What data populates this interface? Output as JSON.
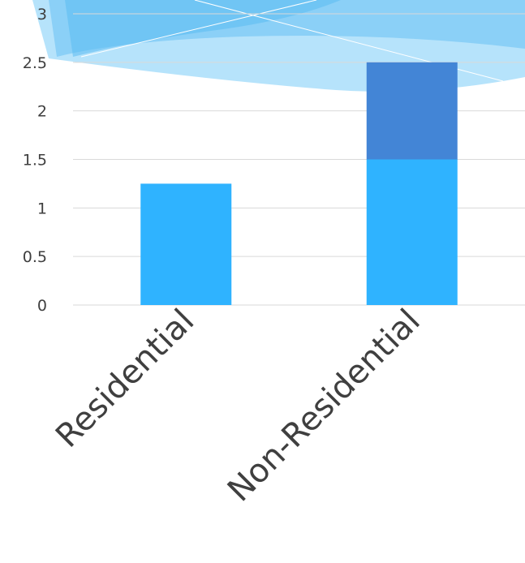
{
  "chart_data": {
    "type": "bar",
    "stacked": true,
    "categories": [
      "Residential",
      "Non-Residential"
    ],
    "series": [
      {
        "values": [
          1.25,
          1.5
        ],
        "color": "#2fb3ff"
      },
      {
        "values": [
          0,
          1.0
        ],
        "color": "#4385d6"
      }
    ],
    "yticks": [
      "0",
      "0.5",
      "1",
      "1.5",
      "2",
      "2.5",
      "3"
    ],
    "ylim": [
      0,
      3
    ],
    "grid": true,
    "legend": "none"
  },
  "colors": {
    "gridline": "#d9d9d9",
    "header_light": "#aee0fb",
    "header_mid": "#7ccaf5",
    "header_dark": "#5bbcf3"
  }
}
